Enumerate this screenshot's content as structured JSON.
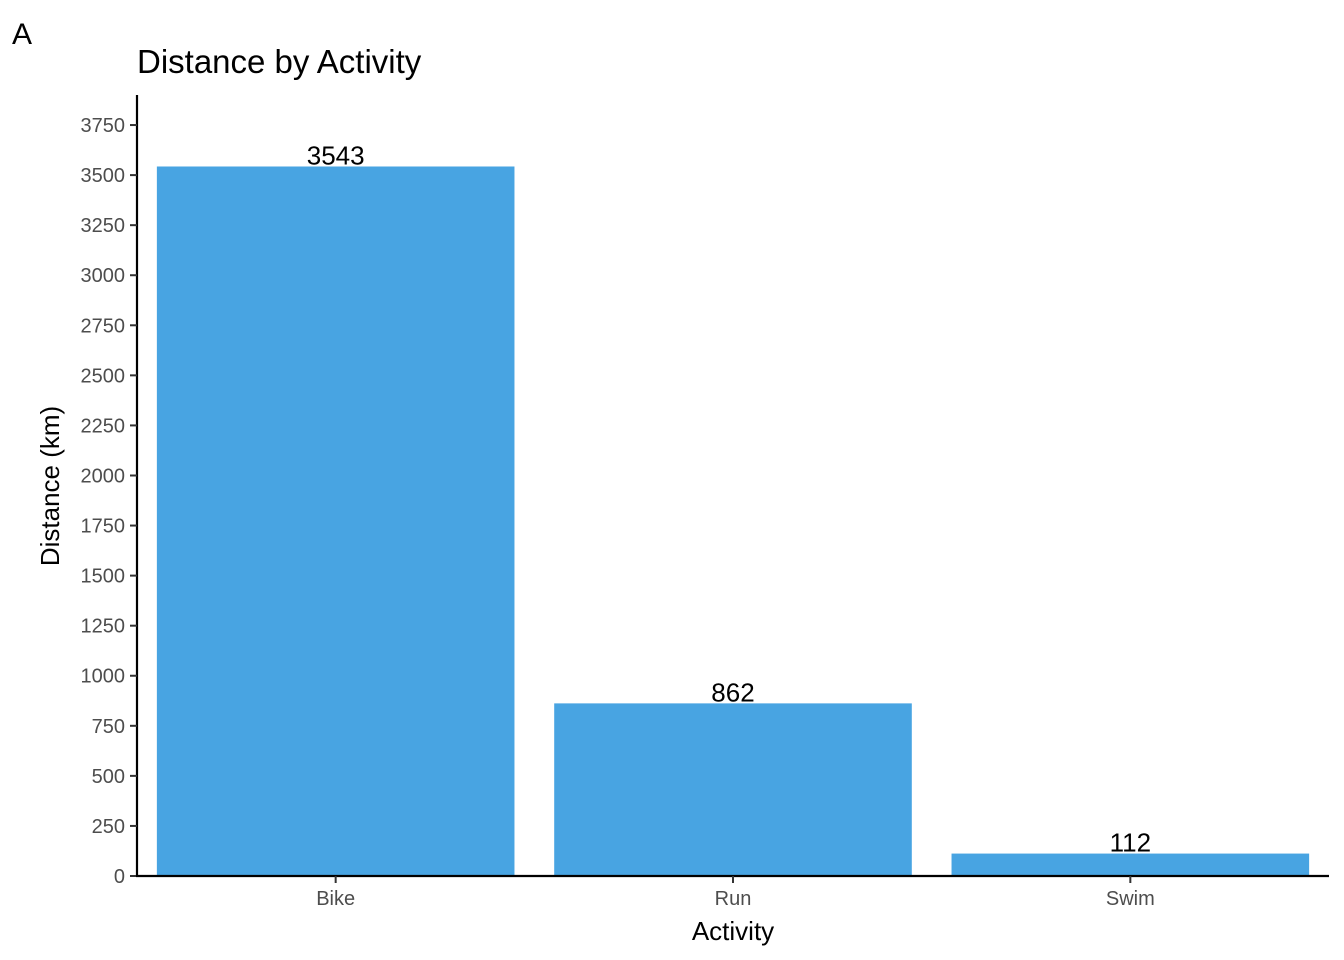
{
  "panel_tag": "A",
  "chart_data": {
    "type": "bar",
    "title": "Distance by Activity",
    "xlabel": "Activity",
    "ylabel": "Distance (km)",
    "categories": [
      "Bike",
      "Run",
      "Swim"
    ],
    "values": [
      3543,
      862,
      112
    ],
    "data_labels": [
      "3543",
      "862",
      "112"
    ],
    "ylim": [
      0,
      3900
    ],
    "yticks": [
      0,
      250,
      500,
      750,
      1000,
      1250,
      1500,
      1750,
      2000,
      2250,
      2500,
      2750,
      3000,
      3250,
      3500,
      3750
    ],
    "grid": false,
    "legend": "none",
    "bar_color": "#48A4E2"
  }
}
